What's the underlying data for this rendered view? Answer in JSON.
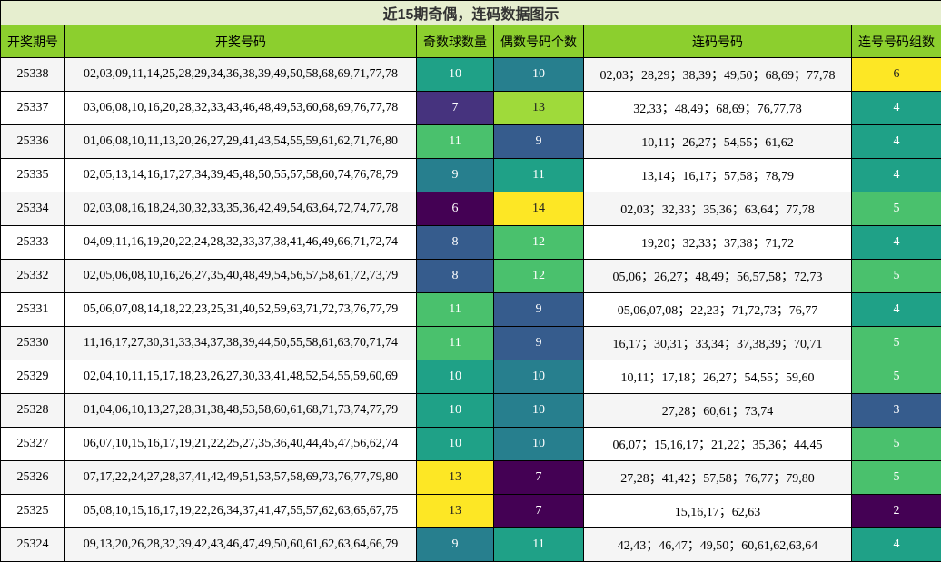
{
  "chart_data": {
    "type": "table",
    "title": "近15期奇偶，连码数据图示",
    "columns": [
      "开奖期号",
      "开奖号码",
      "奇数球数量",
      "偶数号码个数",
      "连码号码",
      "连号号码组数"
    ],
    "rows": [
      {
        "period": "25338",
        "numbers": "02,03,09,11,14,25,28,29,34,36,38,39,49,50,58,68,69,71,77,78",
        "odd": 10,
        "even": 10,
        "consec": "02,03；28,29；38,39；49,50；68,69；77,78",
        "groups": 6
      },
      {
        "period": "25337",
        "numbers": "03,06,08,10,16,20,28,32,33,43,46,48,49,53,60,68,69,76,77,78",
        "odd": 7,
        "even": 13,
        "consec": "32,33；48,49；68,69；76,77,78",
        "groups": 4
      },
      {
        "period": "25336",
        "numbers": "01,06,08,10,11,13,20,26,27,29,41,43,54,55,59,61,62,71,76,80",
        "odd": 11,
        "even": 9,
        "consec": "10,11；26,27；54,55；61,62",
        "groups": 4
      },
      {
        "period": "25335",
        "numbers": "02,05,13,14,16,17,27,34,39,45,48,50,55,57,58,60,74,76,78,79",
        "odd": 9,
        "even": 11,
        "consec": "13,14；16,17；57,58；78,79",
        "groups": 4
      },
      {
        "period": "25334",
        "numbers": "02,03,08,16,18,24,30,32,33,35,36,42,49,54,63,64,72,74,77,78",
        "odd": 6,
        "even": 14,
        "consec": "02,03；32,33；35,36；63,64；77,78",
        "groups": 5
      },
      {
        "period": "25333",
        "numbers": "04,09,11,16,19,20,22,24,28,32,33,37,38,41,46,49,66,71,72,74",
        "odd": 8,
        "even": 12,
        "consec": "19,20；32,33；37,38；71,72",
        "groups": 4
      },
      {
        "period": "25332",
        "numbers": "02,05,06,08,10,16,26,27,35,40,48,49,54,56,57,58,61,72,73,79",
        "odd": 8,
        "even": 12,
        "consec": "05,06；26,27；48,49；56,57,58；72,73",
        "groups": 5
      },
      {
        "period": "25331",
        "numbers": "05,06,07,08,14,18,22,23,25,31,40,52,59,63,71,72,73,76,77,79",
        "odd": 11,
        "even": 9,
        "consec": "05,06,07,08；22,23；71,72,73；76,77",
        "groups": 4
      },
      {
        "period": "25330",
        "numbers": "11,16,17,27,30,31,33,34,37,38,39,44,50,55,58,61,63,70,71,74",
        "odd": 11,
        "even": 9,
        "consec": "16,17；30,31；33,34；37,38,39；70,71",
        "groups": 5
      },
      {
        "period": "25329",
        "numbers": "02,04,10,11,15,17,18,23,26,27,30,33,41,48,52,54,55,59,60,69",
        "odd": 10,
        "even": 10,
        "consec": "10,11；17,18；26,27；54,55；59,60",
        "groups": 5
      },
      {
        "period": "25328",
        "numbers": "01,04,06,10,13,27,28,31,38,48,53,58,60,61,68,71,73,74,77,79",
        "odd": 10,
        "even": 10,
        "consec": "27,28；60,61；73,74",
        "groups": 3
      },
      {
        "period": "25327",
        "numbers": "06,07,10,15,16,17,19,21,22,25,27,35,36,40,44,45,47,56,62,74",
        "odd": 10,
        "even": 10,
        "consec": "06,07；15,16,17；21,22；35,36；44,45",
        "groups": 5
      },
      {
        "period": "25326",
        "numbers": "07,17,22,24,27,28,37,41,42,49,51,53,57,58,69,73,76,77,79,80",
        "odd": 13,
        "even": 7,
        "consec": "27,28；41,42；57,58；76,77；79,80",
        "groups": 5
      },
      {
        "period": "25325",
        "numbers": "05,08,10,15,16,17,19,22,26,34,37,41,47,55,57,62,63,65,67,75",
        "odd": 13,
        "even": 7,
        "consec": "15,16,17；62,63",
        "groups": 2
      },
      {
        "period": "25324",
        "numbers": "09,13,20,26,28,32,39,42,43,46,47,49,50,60,61,62,63,64,66,79",
        "odd": 9,
        "even": 11,
        "consec": "42,43；46,47；49,50；60,61,62,63,64",
        "groups": 4
      }
    ]
  },
  "colors": {
    "title_bg": "#e6eecf",
    "header_bg": "#8ccf2e",
    "heatmap_scale": [
      "#440154",
      "#46337e",
      "#365c8d",
      "#277f8e",
      "#1fa187",
      "#4ac16d",
      "#9fda3a",
      "#fde725"
    ]
  }
}
